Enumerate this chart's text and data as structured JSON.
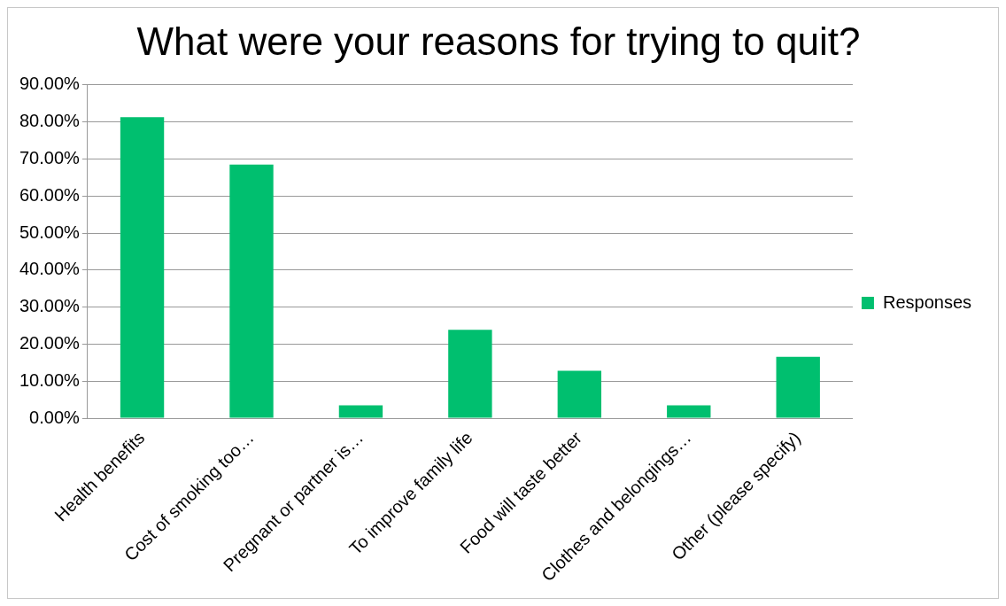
{
  "chart_data": {
    "type": "bar",
    "title": "What were your reasons for trying to quit?",
    "categories": [
      "Health benefits",
      "Cost of smoking too…",
      "Pregnant or partner is…",
      "To improve family life",
      "Food will taste better",
      "Clothes and belongings…",
      "Other (please specify)"
    ],
    "series": [
      {
        "name": "Responses",
        "color": "#00bf6f",
        "values": [
          81.3,
          68.5,
          3.5,
          23.9,
          12.8,
          3.5,
          16.6
        ]
      }
    ],
    "ylim": [
      0,
      90
    ],
    "yticks": [
      {
        "value": 0,
        "label": "0.00%"
      },
      {
        "value": 10,
        "label": "10.00%"
      },
      {
        "value": 20,
        "label": "20.00%"
      },
      {
        "value": 30,
        "label": "30.00%"
      },
      {
        "value": 40,
        "label": "40.00%"
      },
      {
        "value": 50,
        "label": "50.00%"
      },
      {
        "value": 60,
        "label": "60.00%"
      },
      {
        "value": 70,
        "label": "70.00%"
      },
      {
        "value": 80,
        "label": "80.00%"
      },
      {
        "value": 90,
        "label": "90.00%"
      }
    ],
    "grid": "y",
    "legend": "right"
  }
}
